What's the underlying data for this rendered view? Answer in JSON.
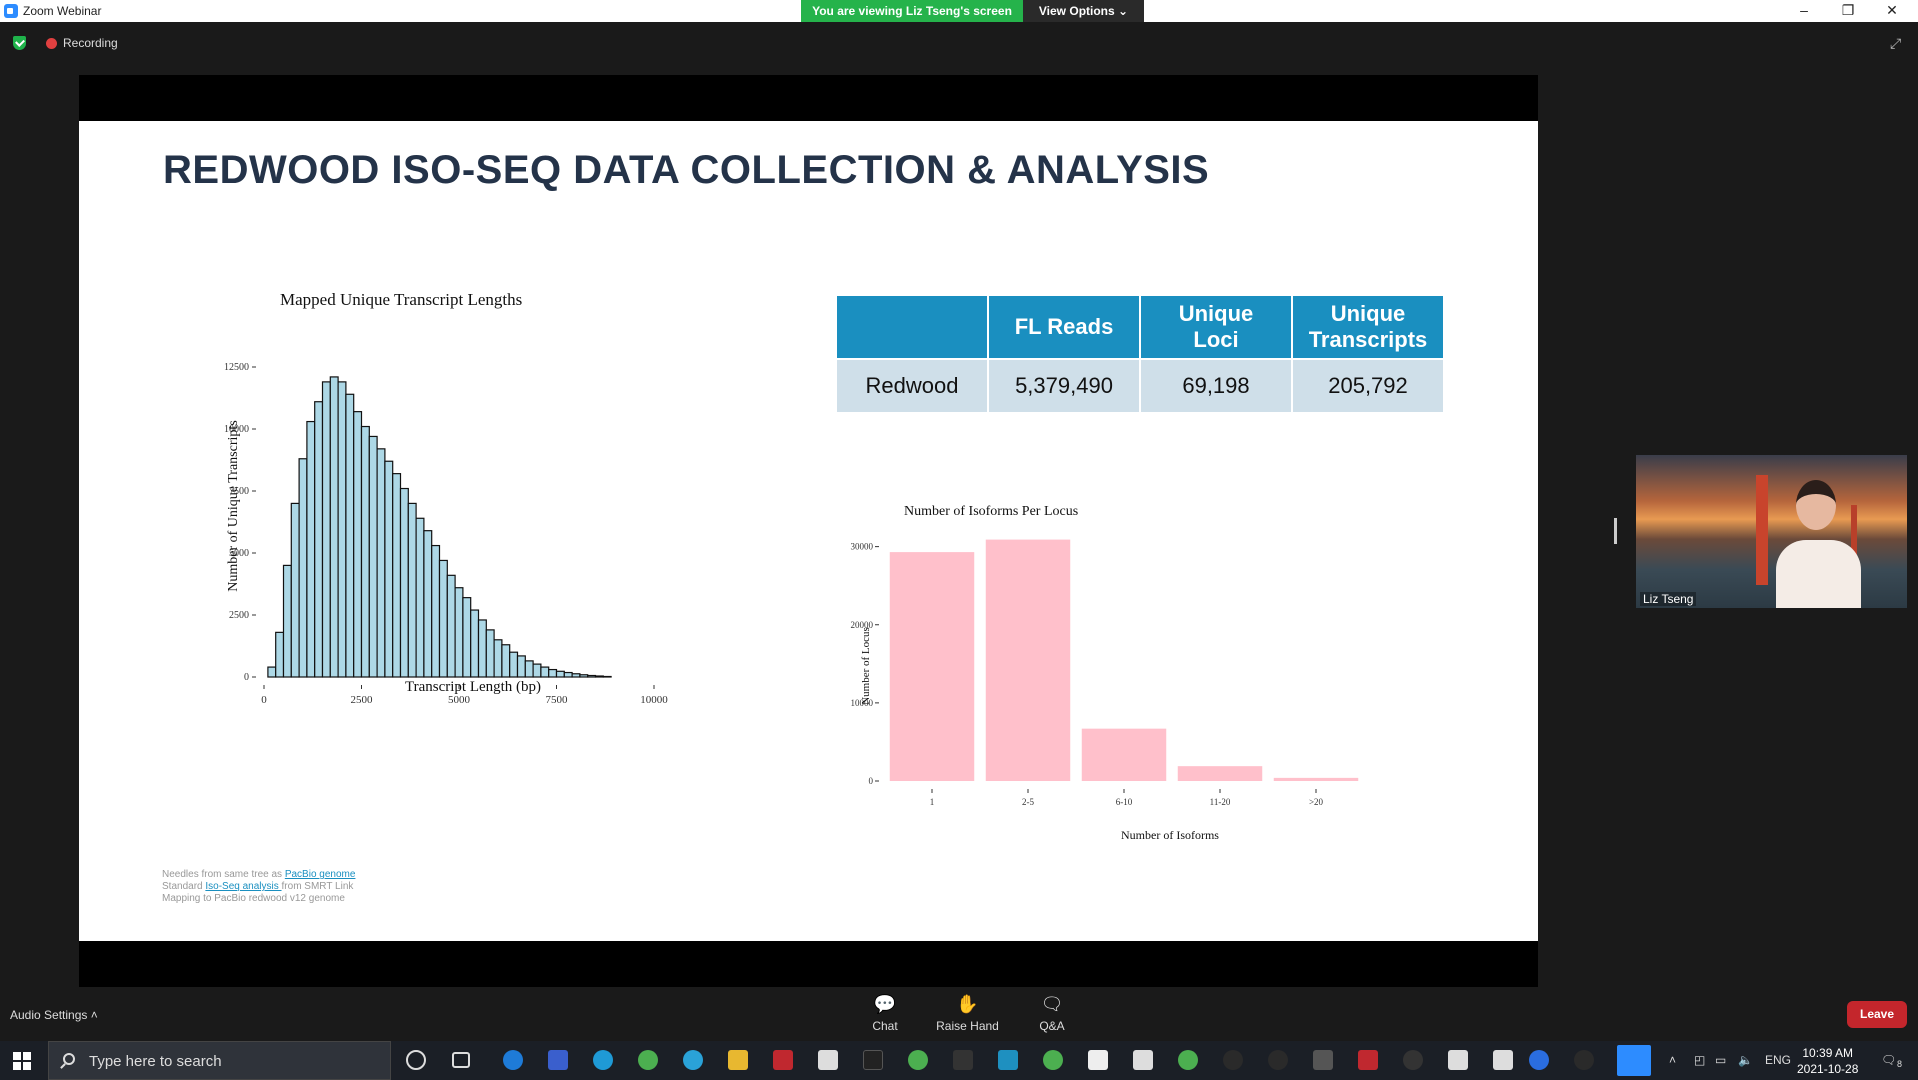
{
  "window": {
    "app_title": "Zoom Webinar",
    "viewing_banner": "You are viewing Liz Tseng's screen",
    "view_options": "View Options",
    "recording_label": "Recording"
  },
  "slide": {
    "title": "REDWOOD ISO-SEQ DATA COLLECTION & ANALYSIS",
    "table": {
      "headers": [
        "",
        "FL Reads",
        "Unique\nLoci",
        "Unique\nTranscripts"
      ],
      "header_lines": {
        "h1": "FL Reads",
        "h2a": "Unique",
        "h2b": "Loci",
        "h3a": "Unique",
        "h3b": "Transcripts"
      },
      "row": {
        "label": "Redwood",
        "fl_reads": "5,379,490",
        "unique_loci": "69,198",
        "unique_transcripts": "205,792"
      }
    },
    "notes": {
      "line1_prefix": "Needles from same tree as ",
      "line1_link": "PacBio genome",
      "line2_prefix": "Standard ",
      "line2_link": "Iso-Seq analysis ",
      "line2_suffix": "from SMRT Link",
      "line3": "Mapping to PacBio redwood v12 genome"
    }
  },
  "chart_data": [
    {
      "type": "bar",
      "title": "Mapped Unique Transcript Lengths",
      "xlabel": "Transcript Length (bp)",
      "ylabel": "Number of Unique Transcripts",
      "xlim": [
        0,
        10000
      ],
      "ylim": [
        0,
        12500
      ],
      "xticks": [
        "0",
        "2500",
        "5000",
        "7500",
        "10000"
      ],
      "yticks": [
        "0",
        "2500",
        "5000",
        "7500",
        "10000",
        "12500"
      ],
      "bin_width": 200,
      "bin_start": 100,
      "values": [
        400,
        1800,
        4500,
        7000,
        8800,
        10300,
        11100,
        11900,
        12100,
        11900,
        11400,
        10700,
        10100,
        9700,
        9200,
        8700,
        8200,
        7600,
        7000,
        6400,
        5900,
        5300,
        4700,
        4100,
        3600,
        3200,
        2700,
        2300,
        1900,
        1500,
        1300,
        1000,
        850,
        650,
        520,
        400,
        300,
        230,
        180,
        130,
        90,
        60,
        40,
        20
      ],
      "bar_color": "#add8e6",
      "grid": false
    },
    {
      "type": "bar",
      "title": "Number of Isoforms Per Locus",
      "xlabel": "Number of Isoforms",
      "ylabel": "Number of Locus",
      "categories": [
        "1",
        "2-5",
        "6-10",
        "11-20",
        ">20"
      ],
      "values": [
        29300,
        30900,
        6700,
        1900,
        400
      ],
      "ylim": [
        0,
        32000
      ],
      "yticks": [
        "0",
        "10000",
        "20000",
        "30000"
      ],
      "bar_color": "#ffc0cb",
      "grid": false
    }
  ],
  "participant": {
    "name": "Liz Tseng"
  },
  "controls": {
    "audio_settings": "Audio Settings",
    "chat": "Chat",
    "raise_hand": "Raise Hand",
    "qa": "Q&A",
    "leave": "Leave"
  },
  "taskbar": {
    "search_placeholder": "Type here to search",
    "lang": "ENG",
    "time": "10:39 AM",
    "date": "2021-10-28",
    "notification_count": "8"
  }
}
